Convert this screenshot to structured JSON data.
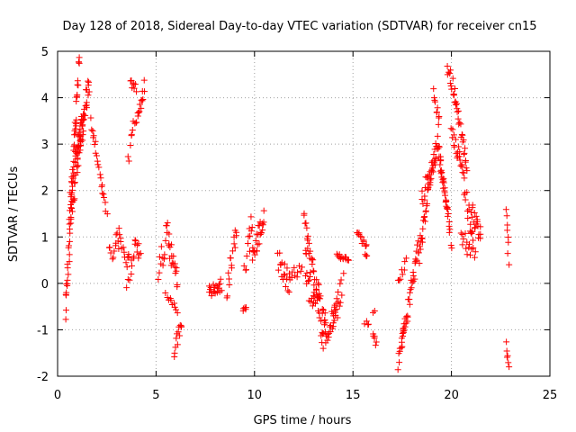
{
  "chart_data": {
    "type": "scatter",
    "title": "Day 128 of 2018, Sidereal Day-to-day VTEC variation (SDTVAR) for receiver cn15",
    "xlabel": "GPS time / hours",
    "ylabel": "SDTVAR / TECUs",
    "xlim": [
      0,
      25
    ],
    "ylim": [
      -2,
      5
    ],
    "xticks": [
      0,
      5,
      10,
      15,
      20,
      25
    ],
    "yticks": [
      -2,
      -1,
      0,
      1,
      2,
      3,
      4,
      5
    ],
    "xtick_labels": [
      "0",
      "5",
      "10",
      "15",
      "20",
      "25"
    ],
    "ytick_labels": [
      "-2",
      "-1",
      "0",
      "1",
      "2",
      "3",
      "4",
      "5"
    ],
    "grid": true,
    "marker": "+",
    "color": "#ff0000",
    "segments": [
      {
        "x0": 0.4,
        "x1": 1.1,
        "y0": -0.65,
        "y1": 4.85,
        "n": 55,
        "noise": 0.3
      },
      {
        "x0": 0.6,
        "x1": 1.3,
        "y0": 1.5,
        "y1": 3.6,
        "n": 45,
        "noise": 0.4
      },
      {
        "x0": 0.95,
        "x1": 1.6,
        "y0": 2.6,
        "y1": 4.4,
        "n": 35,
        "noise": 0.3
      },
      {
        "x0": 1.7,
        "x1": 1.9,
        "y0": 3.5,
        "y1": 3.0,
        "n": 6,
        "noise": 0.1
      },
      {
        "x0": 1.9,
        "x1": 2.5,
        "y0": 2.9,
        "y1": 1.5,
        "n": 16,
        "noise": 0.1
      },
      {
        "x0": 2.6,
        "x1": 3.1,
        "y0": 0.6,
        "y1": 0.9,
        "n": 10,
        "noise": 0.2
      },
      {
        "x0": 3.0,
        "x1": 3.5,
        "y0": 1.2,
        "y1": 0.4,
        "n": 12,
        "noise": 0.2
      },
      {
        "x0": 3.5,
        "x1": 4.2,
        "y0": 0.2,
        "y1": 0.9,
        "n": 20,
        "noise": 0.35
      },
      {
        "x0": 3.6,
        "x1": 3.9,
        "y0": 2.7,
        "y1": 3.4,
        "n": 8,
        "noise": 0.2
      },
      {
        "x0": 3.7,
        "x1": 4.0,
        "y0": 4.3,
        "y1": 4.2,
        "n": 8,
        "noise": 0.1
      },
      {
        "x0": 4.0,
        "x1": 4.4,
        "y0": 3.4,
        "y1": 4.3,
        "n": 14,
        "noise": 0.2
      },
      {
        "x0": 5.1,
        "x1": 5.5,
        "y0": 0.3,
        "y1": 0.8,
        "n": 10,
        "noise": 0.3
      },
      {
        "x0": 5.5,
        "x1": 6.1,
        "y0": 1.2,
        "y1": -0.05,
        "n": 22,
        "noise": 0.25
      },
      {
        "x0": 5.5,
        "x1": 6.1,
        "y0": -0.3,
        "y1": -0.6,
        "n": 10,
        "noise": 0.1
      },
      {
        "x0": 5.9,
        "x1": 6.3,
        "y0": -1.5,
        "y1": -0.9,
        "n": 12,
        "noise": 0.2
      },
      {
        "x0": 7.7,
        "x1": 8.3,
        "y0": -0.2,
        "y1": -0.05,
        "n": 20,
        "noise": 0.15
      },
      {
        "x0": 8.6,
        "x1": 9.1,
        "y0": 0.0,
        "y1": 1.0,
        "n": 16,
        "noise": 0.35
      },
      {
        "x0": 9.4,
        "x1": 9.6,
        "y0": -0.55,
        "y1": -0.55,
        "n": 5,
        "noise": 0.05
      },
      {
        "x0": 9.5,
        "x1": 9.9,
        "y0": 0.4,
        "y1": 1.3,
        "n": 12,
        "noise": 0.3
      },
      {
        "x0": 9.9,
        "x1": 10.5,
        "y0": 0.6,
        "y1": 1.4,
        "n": 24,
        "noise": 0.25
      },
      {
        "x0": 11.2,
        "x1": 11.8,
        "y0": 0.5,
        "y1": 0.0,
        "n": 18,
        "noise": 0.25
      },
      {
        "x0": 11.8,
        "x1": 12.4,
        "y0": 0.2,
        "y1": 0.3,
        "n": 10,
        "noise": 0.15
      },
      {
        "x0": 12.5,
        "x1": 12.7,
        "y0": 1.6,
        "y1": 1.0,
        "n": 6,
        "noise": 0.1
      },
      {
        "x0": 12.6,
        "x1": 13.6,
        "y0": 1.0,
        "y1": -1.0,
        "n": 40,
        "noise": 0.35
      },
      {
        "x0": 12.6,
        "x1": 13.3,
        "y0": 0.0,
        "y1": -0.4,
        "n": 20,
        "noise": 0.3
      },
      {
        "x0": 13.4,
        "x1": 14.2,
        "y0": -1.2,
        "y1": -0.5,
        "n": 26,
        "noise": 0.3
      },
      {
        "x0": 14.0,
        "x1": 14.5,
        "y0": -0.8,
        "y1": 0.0,
        "n": 14,
        "noise": 0.25
      },
      {
        "x0": 14.2,
        "x1": 14.8,
        "y0": 0.6,
        "y1": 0.5,
        "n": 14,
        "noise": 0.05
      },
      {
        "x0": 15.2,
        "x1": 15.7,
        "y0": 1.1,
        "y1": 0.8,
        "n": 12,
        "noise": 0.08
      },
      {
        "x0": 15.6,
        "x1": 15.7,
        "y0": 0.6,
        "y1": 0.6,
        "n": 3,
        "noise": 0.05
      },
      {
        "x0": 15.6,
        "x1": 15.8,
        "y0": -0.85,
        "y1": -0.85,
        "n": 4,
        "noise": 0.05
      },
      {
        "x0": 16.0,
        "x1": 16.2,
        "y0": -1.1,
        "y1": -1.3,
        "n": 6,
        "noise": 0.1
      },
      {
        "x0": 16.0,
        "x1": 16.1,
        "y0": -0.6,
        "y1": -0.6,
        "n": 2,
        "noise": 0.05
      },
      {
        "x0": 17.3,
        "x1": 17.6,
        "y0": -1.8,
        "y1": -0.9,
        "n": 12,
        "noise": 0.15
      },
      {
        "x0": 17.3,
        "x1": 17.7,
        "y0": 0.0,
        "y1": 0.5,
        "n": 8,
        "noise": 0.1
      },
      {
        "x0": 17.5,
        "x1": 18.4,
        "y0": -1.3,
        "y1": 1.0,
        "n": 35,
        "noise": 0.2
      },
      {
        "x0": 18.4,
        "x1": 18.8,
        "y0": 0.5,
        "y1": 2.0,
        "n": 16,
        "noise": 0.2
      },
      {
        "x0": 18.8,
        "x1": 19.3,
        "y0": 2.0,
        "y1": 3.0,
        "n": 18,
        "noise": 0.2
      },
      {
        "x0": 18.5,
        "x1": 19.2,
        "y0": 1.8,
        "y1": 2.8,
        "n": 20,
        "noise": 0.25
      },
      {
        "x0": 19.1,
        "x1": 19.4,
        "y0": 4.1,
        "y1": 3.5,
        "n": 10,
        "noise": 0.15
      },
      {
        "x0": 19.3,
        "x1": 20.0,
        "y0": 3.0,
        "y1": 0.9,
        "n": 28,
        "noise": 0.2
      },
      {
        "x0": 19.4,
        "x1": 19.8,
        "y0": 2.6,
        "y1": 1.6,
        "n": 12,
        "noise": 0.15
      },
      {
        "x0": 19.8,
        "x1": 20.2,
        "y0": 4.7,
        "y1": 4.0,
        "n": 14,
        "noise": 0.15
      },
      {
        "x0": 20.0,
        "x1": 20.5,
        "y0": 3.2,
        "y1": 2.6,
        "n": 16,
        "noise": 0.2
      },
      {
        "x0": 20.2,
        "x1": 20.8,
        "y0": 4.0,
        "y1": 2.5,
        "n": 22,
        "noise": 0.15
      },
      {
        "x0": 20.5,
        "x1": 21.2,
        "y0": 2.5,
        "y1": 0.6,
        "n": 22,
        "noise": 0.2
      },
      {
        "x0": 21.0,
        "x1": 21.5,
        "y0": 1.6,
        "y1": 1.0,
        "n": 18,
        "noise": 0.2
      },
      {
        "x0": 20.5,
        "x1": 21.0,
        "y0": 1.0,
        "y1": 0.7,
        "n": 12,
        "noise": 0.2
      },
      {
        "x0": 22.8,
        "x1": 22.9,
        "y0": 1.6,
        "y1": 0.5,
        "n": 8,
        "noise": 0.1
      },
      {
        "x0": 22.8,
        "x1": 22.9,
        "y0": -1.3,
        "y1": -1.8,
        "n": 6,
        "noise": 0.1
      }
    ]
  }
}
